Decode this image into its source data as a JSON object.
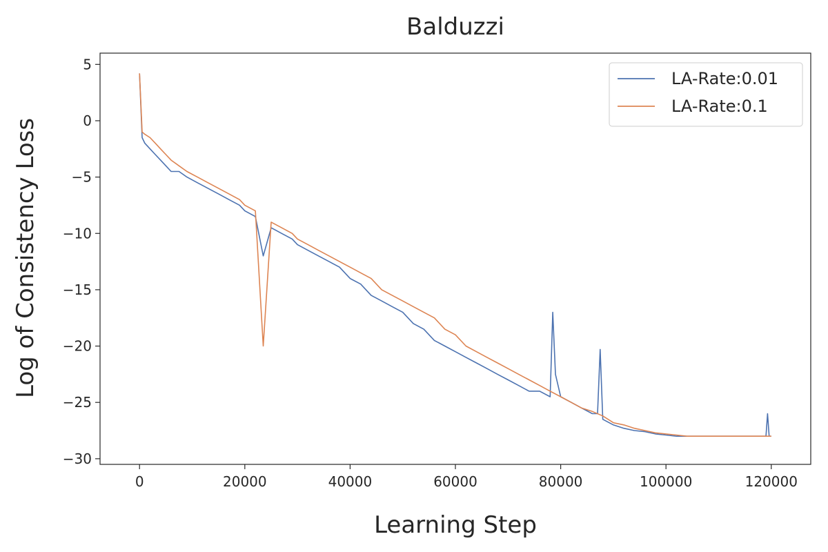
{
  "chart_data": {
    "type": "line",
    "title": "Balduzzi",
    "xlabel": "Learning Step",
    "ylabel": "Log of Consistency Loss",
    "xlim": [
      -7500,
      127500
    ],
    "ylim": [
      -30.5,
      6
    ],
    "xticks": [
      0,
      20000,
      40000,
      60000,
      80000,
      100000,
      120000
    ],
    "xtick_labels": [
      "0",
      "20000",
      "40000",
      "60000",
      "80000",
      "100000",
      "120000"
    ],
    "yticks": [
      5,
      0,
      -5,
      -10,
      -15,
      -20,
      -25,
      -30
    ],
    "ytick_labels": [
      "5",
      "0",
      "−5",
      "−10",
      "−15",
      "−20",
      "−25",
      "−30"
    ],
    "grid": false,
    "legend_position": "top-right",
    "series": [
      {
        "name": "LA-Rate:0.01",
        "color": "#4c72b0",
        "x": [
          0,
          500,
          1000,
          2000,
          3000,
          4000,
          5000,
          6000,
          7500,
          9000,
          11000,
          13000,
          15000,
          17000,
          19000,
          20000,
          22000,
          23500,
          25000,
          27000,
          29000,
          30000,
          32000,
          34000,
          36000,
          38000,
          40000,
          42000,
          44000,
          46000,
          48000,
          50000,
          52000,
          54000,
          56000,
          58000,
          60000,
          62000,
          64000,
          66000,
          68000,
          70000,
          72000,
          74000,
          76000,
          78000,
          78500,
          79000,
          80000,
          82000,
          84000,
          86000,
          87000,
          87500,
          88000,
          90000,
          92000,
          94000,
          96000,
          98000,
          100000,
          102000,
          104000,
          106000,
          108000,
          110000,
          112000,
          114000,
          116000,
          118000,
          119000,
          119300,
          119600,
          120000
        ],
        "y": [
          4.2,
          -1.5,
          -2.0,
          -2.5,
          -3.0,
          -3.5,
          -4.0,
          -4.5,
          -4.5,
          -5.0,
          -5.5,
          -6.0,
          -6.5,
          -7.0,
          -7.5,
          -8.0,
          -8.5,
          -12.0,
          -9.5,
          -10.0,
          -10.5,
          -11.0,
          -11.5,
          -12.0,
          -12.5,
          -13.0,
          -14.0,
          -14.5,
          -15.5,
          -16.0,
          -16.5,
          -17.0,
          -18.0,
          -18.5,
          -19.5,
          -20.0,
          -20.5,
          -21.0,
          -21.5,
          -22.0,
          -22.5,
          -23.0,
          -23.5,
          -24.0,
          -24.0,
          -24.5,
          -17.0,
          -22.5,
          -24.5,
          -25.0,
          -25.5,
          -26.0,
          -26.0,
          -20.3,
          -26.5,
          -27.0,
          -27.3,
          -27.5,
          -27.6,
          -27.8,
          -27.9,
          -28.0,
          -28.0,
          -28.0,
          -28.0,
          -28.0,
          -28.0,
          -28.0,
          -28.0,
          -28.0,
          -28.0,
          -26.0,
          -28.0,
          -28.0
        ]
      },
      {
        "name": "LA-Rate:0.1",
        "color": "#dd8452",
        "x": [
          0,
          500,
          1000,
          2000,
          3000,
          4000,
          5000,
          6000,
          7500,
          9000,
          11000,
          13000,
          15000,
          17000,
          19000,
          20000,
          22000,
          23500,
          25000,
          27000,
          29000,
          30000,
          32000,
          34000,
          36000,
          38000,
          40000,
          42000,
          44000,
          46000,
          48000,
          50000,
          52000,
          54000,
          56000,
          58000,
          60000,
          62000,
          64000,
          66000,
          68000,
          70000,
          72000,
          74000,
          76000,
          78000,
          80000,
          82000,
          84000,
          86000,
          88000,
          90000,
          92000,
          94000,
          96000,
          98000,
          100000,
          102000,
          104000,
          106000,
          108000,
          110000,
          112000,
          114000,
          116000,
          118000,
          120000
        ],
        "y": [
          4.2,
          -1.0,
          -1.2,
          -1.5,
          -2.0,
          -2.5,
          -3.0,
          -3.5,
          -4.0,
          -4.5,
          -5.0,
          -5.5,
          -6.0,
          -6.5,
          -7.0,
          -7.5,
          -8.0,
          -20.0,
          -9.0,
          -9.5,
          -10.0,
          -10.5,
          -11.0,
          -11.5,
          -12.0,
          -12.5,
          -13.0,
          -13.5,
          -14.0,
          -15.0,
          -15.5,
          -16.0,
          -16.5,
          -17.0,
          -17.5,
          -18.5,
          -19.0,
          -20.0,
          -20.5,
          -21.0,
          -21.5,
          -22.0,
          -22.5,
          -23.0,
          -23.5,
          -24.0,
          -24.5,
          -25.0,
          -25.5,
          -25.8,
          -26.2,
          -26.8,
          -27.0,
          -27.3,
          -27.5,
          -27.7,
          -27.8,
          -27.9,
          -28.0,
          -28.0,
          -28.0,
          -28.0,
          -28.0,
          -28.0,
          -28.0,
          -28.0,
          -28.0
        ]
      }
    ]
  }
}
